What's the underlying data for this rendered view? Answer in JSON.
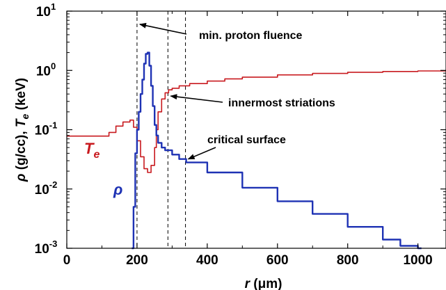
{
  "chart_data": {
    "type": "line",
    "xlabel": "r (μm)",
    "ylabel": "ρ (g/cc), Te (keV)",
    "xlim": [
      0,
      1080
    ],
    "ylim": [
      0.001,
      10
    ],
    "yscale": "log",
    "grid": false,
    "x_ticks": [
      "0",
      "200",
      "400",
      "600",
      "800",
      "1000"
    ],
    "y_ticks": [
      {
        "base": "10",
        "exp": "1",
        "value": 10
      },
      {
        "base": "10",
        "exp": "0",
        "value": 1
      },
      {
        "base": "10",
        "exp": "-1",
        "value": 0.1
      },
      {
        "base": "10",
        "exp": "-2",
        "value": 0.01
      },
      {
        "base": "10",
        "exp": "-3",
        "value": 0.001
      }
    ],
    "vlines": [
      200,
      288,
      338
    ],
    "series": [
      {
        "name": "Te",
        "color": "#c8191e",
        "x": [
          0,
          50,
          100,
          120,
          140,
          160,
          180,
          190,
          200,
          210,
          220,
          230,
          240,
          250,
          255,
          260,
          270,
          280,
          290,
          300,
          320,
          350,
          400,
          450,
          500,
          600,
          700,
          800,
          900,
          1000,
          1080
        ],
        "y": [
          0.078,
          0.078,
          0.078,
          0.09,
          0.115,
          0.135,
          0.145,
          0.11,
          0.065,
          0.035,
          0.022,
          0.019,
          0.025,
          0.05,
          0.1,
          0.2,
          0.33,
          0.42,
          0.47,
          0.5,
          0.55,
          0.6,
          0.66,
          0.72,
          0.77,
          0.84,
          0.89,
          0.93,
          0.96,
          0.98,
          0.98
        ]
      },
      {
        "name": "ρ",
        "color": "#1e32b4",
        "x": [
          185,
          190,
          195,
          200,
          205,
          210,
          215,
          220,
          225,
          230,
          235,
          240,
          245,
          250,
          255,
          260,
          270,
          280,
          300,
          320,
          340,
          400,
          500,
          600,
          700,
          800,
          900,
          950,
          1000,
          1010
        ],
        "y": [
          0.001,
          0.005,
          0.04,
          0.1,
          0.2,
          0.4,
          0.7,
          1.3,
          1.9,
          2.0,
          1.2,
          0.55,
          0.25,
          0.12,
          0.08,
          0.06,
          0.05,
          0.045,
          0.038,
          0.032,
          0.028,
          0.019,
          0.0105,
          0.0062,
          0.0038,
          0.0023,
          0.0014,
          0.0011,
          0.001,
          0.001
        ]
      }
    ],
    "annotations": [
      {
        "text": "min. proton fluence",
        "arrow_to_x": 200,
        "arrow_to_y": 6.0
      },
      {
        "text": "innermost striations",
        "arrow_to_x": 288,
        "arrow_to_y": 0.37
      },
      {
        "text": "critical surface",
        "arrow_to_x": 338,
        "arrow_to_y": 0.032
      }
    ],
    "series_labels": [
      {
        "main": "T",
        "sub": "e",
        "color": "#c8191e"
      },
      {
        "main": "ρ",
        "color": "#1e32b4"
      }
    ]
  }
}
